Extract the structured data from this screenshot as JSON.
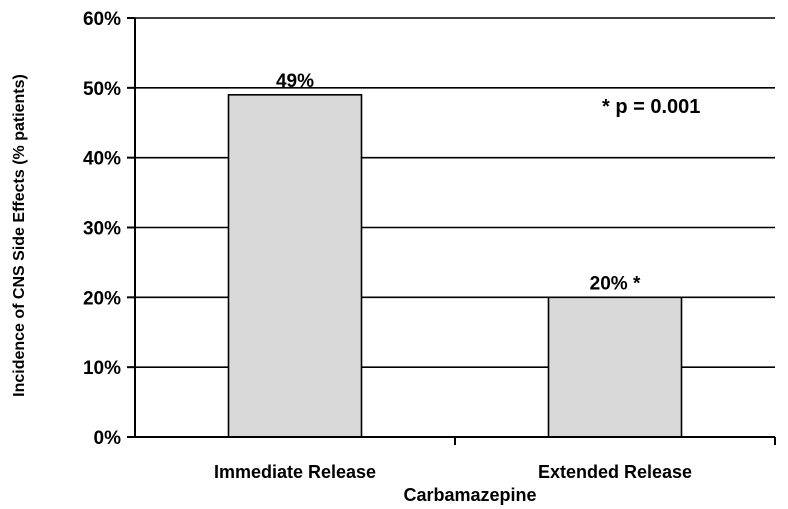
{
  "chart_data": {
    "type": "bar",
    "categories": [
      "Immediate Release",
      "Extended Release"
    ],
    "values": [
      49,
      20
    ],
    "data_labels": [
      "49%",
      "20% *"
    ],
    "xlabel": "Carbamazepine",
    "ylabel": "Incidence of CNS Side Effects (% patients)",
    "ylim": [
      0,
      60
    ],
    "yticks": [
      0,
      10,
      20,
      30,
      40,
      50,
      60
    ],
    "ytick_labels": [
      "0%",
      "10%",
      "20%",
      "30%",
      "40%",
      "50%",
      "60%"
    ],
    "annotation": "* p = 0.001",
    "grid": true,
    "bar_color": "#d9d9d9",
    "edge_color": "#000000"
  }
}
